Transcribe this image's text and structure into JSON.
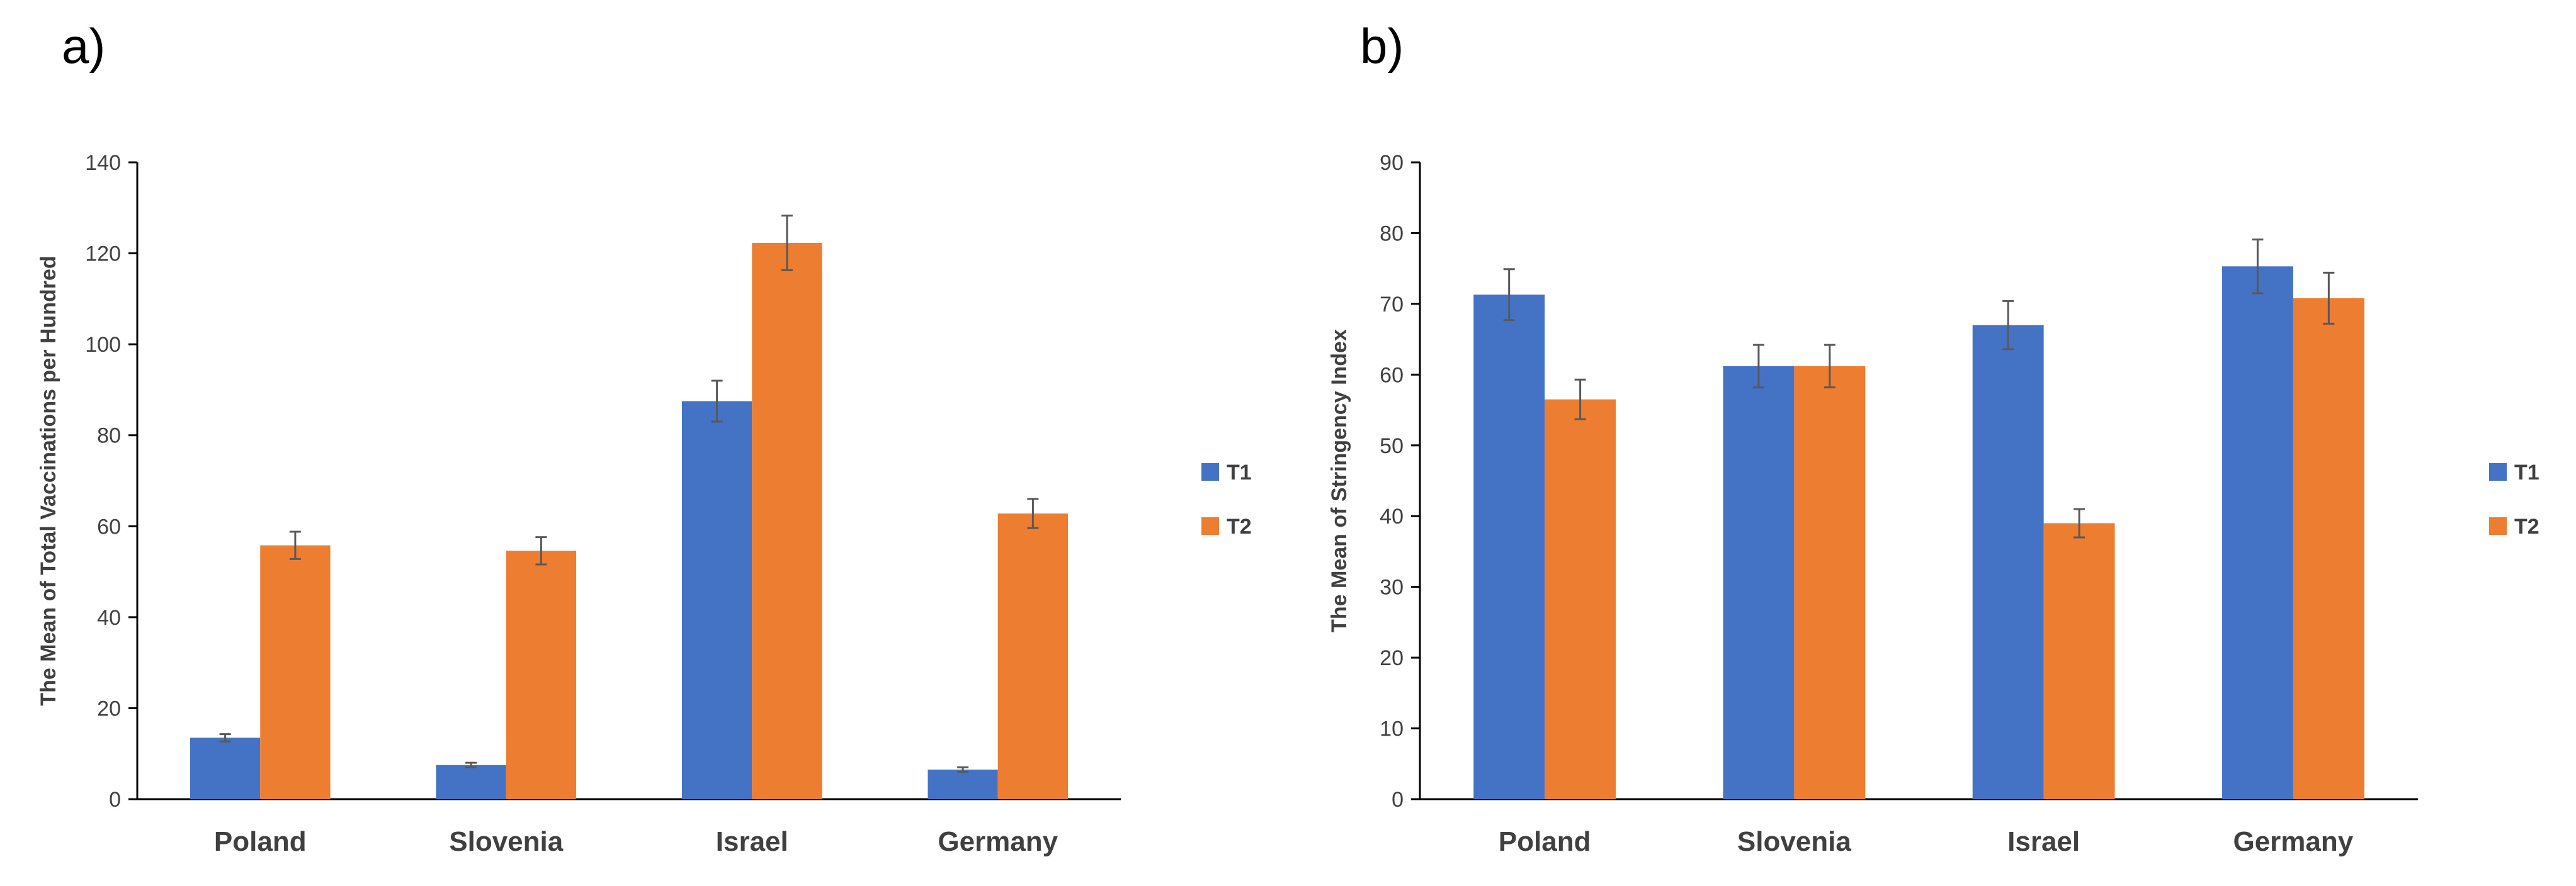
{
  "chart_data": [
    {
      "type": "bar",
      "panel_label": "a)",
      "title": "",
      "xlabel": "",
      "ylabel": "The Mean of Total Vaccinations per Hundred",
      "ylim": [
        0,
        140
      ],
      "yticks": [
        0,
        20,
        40,
        60,
        80,
        100,
        120,
        140
      ],
      "categories": [
        "Poland",
        "Slovenia",
        "Israel",
        "Germany"
      ],
      "grid": false,
      "legend_position": "right",
      "series": [
        {
          "name": "T1",
          "color": "#4472C4",
          "values": [
            13.5,
            7.5,
            87.5,
            6.5
          ],
          "errors": [
            0.8,
            0.5,
            4.5,
            0.5
          ]
        },
        {
          "name": "T2",
          "color": "#ED7D31",
          "values": [
            55.8,
            54.6,
            122.3,
            62.8
          ],
          "errors": [
            3.0,
            3.0,
            6.0,
            3.2
          ]
        }
      ]
    },
    {
      "type": "bar",
      "panel_label": "b)",
      "title": "",
      "xlabel": "",
      "ylabel": "The Mean of Stringency Index",
      "ylim": [
        0,
        90
      ],
      "yticks": [
        0,
        10,
        20,
        30,
        40,
        50,
        60,
        70,
        80,
        90
      ],
      "categories": [
        "Poland",
        "Slovenia",
        "Israel",
        "Germany"
      ],
      "grid": false,
      "legend_position": "right",
      "series": [
        {
          "name": "T1",
          "color": "#4472C4",
          "values": [
            71.3,
            61.2,
            67.0,
            75.3
          ],
          "errors": [
            3.6,
            3.0,
            3.4,
            3.8
          ]
        },
        {
          "name": "T2",
          "color": "#ED7D31",
          "values": [
            56.5,
            61.2,
            39.0,
            70.8
          ],
          "errors": [
            2.8,
            3.0,
            2.0,
            3.6
          ]
        }
      ]
    }
  ]
}
